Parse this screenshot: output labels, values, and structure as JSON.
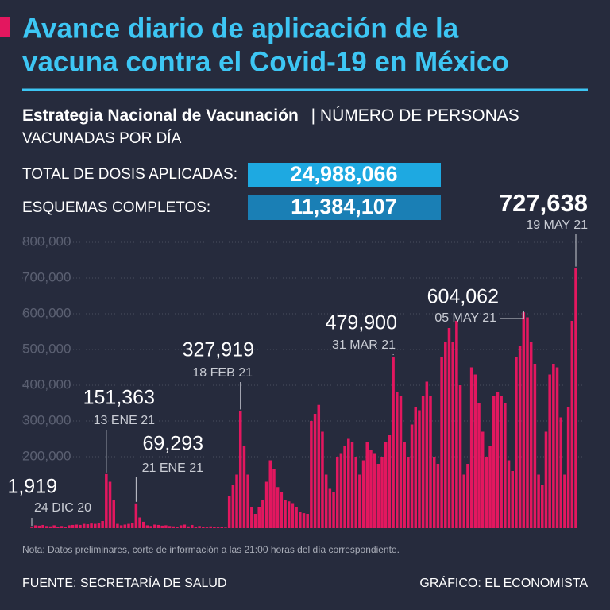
{
  "header": {
    "title_lines": [
      "Avance diario de aplicación de la",
      "vacuna contra el Covid-19 en México"
    ],
    "strategy": "Estrategia Nacional de Vacunación",
    "subtitle_lines": [
      "| NÚMERO DE PERSONAS",
      "VACUNADAS POR DÍA"
    ]
  },
  "stats": [
    {
      "label": "TOTAL DE DOSIS APLICADAS:",
      "value": "24,988,066"
    },
    {
      "label": "ESQUEMAS COMPLETOS:",
      "value": "11,384,107"
    }
  ],
  "chart_data": {
    "type": "bar",
    "color": "#e3175f",
    "grid": true,
    "ylim": [
      0,
      800000
    ],
    "yticks": [
      {
        "value": 200000,
        "label": "200,000"
      },
      {
        "value": 300000,
        "label": "300,000"
      },
      {
        "value": 400000,
        "label": "400,000"
      },
      {
        "value": 500000,
        "label": "500,000"
      },
      {
        "value": 600000,
        "label": "600,000"
      },
      {
        "value": 700000,
        "label": "700,000"
      },
      {
        "value": 800000,
        "label": "800,000"
      }
    ],
    "categories": [
      "24 DIC 20",
      null,
      null,
      null,
      null,
      null,
      null,
      null,
      null,
      null,
      null,
      null,
      null,
      null,
      null,
      null,
      null,
      null,
      null,
      null,
      "13 ENE 21",
      null,
      null,
      null,
      null,
      null,
      null,
      null,
      "21 ENE 21",
      null,
      null,
      null,
      null,
      null,
      null,
      null,
      null,
      null,
      null,
      null,
      null,
      null,
      null,
      null,
      null,
      null,
      null,
      null,
      null,
      null,
      null,
      null,
      null,
      null,
      null,
      null,
      "18 FEB 21",
      null,
      null,
      null,
      null,
      null,
      null,
      null,
      null,
      null,
      null,
      null,
      null,
      null,
      null,
      null,
      null,
      null,
      null,
      null,
      null,
      null,
      null,
      null,
      null,
      null,
      null,
      null,
      null,
      null,
      null,
      null,
      null,
      null,
      null,
      null,
      null,
      null,
      null,
      null,
      null,
      "31 MAR 21",
      null,
      null,
      null,
      null,
      null,
      null,
      null,
      null,
      null,
      null,
      null,
      null,
      null,
      null,
      null,
      null,
      null,
      null,
      null,
      null,
      null,
      null,
      null,
      null,
      null,
      null,
      null,
      null,
      null,
      null,
      null,
      null,
      null,
      null,
      "05 MAY 21",
      null,
      null,
      null,
      null,
      null,
      null,
      null,
      null,
      null,
      null,
      null,
      null,
      null,
      "19 MAY 21"
    ],
    "values": [
      1919,
      8000,
      7000,
      9000,
      6000,
      5000,
      8000,
      4000,
      6000,
      4000,
      8000,
      9000,
      10000,
      9000,
      12000,
      11000,
      13000,
      12000,
      15000,
      20000,
      151363,
      130000,
      78000,
      12000,
      8000,
      10000,
      12000,
      15000,
      69293,
      30000,
      18000,
      8000,
      6000,
      10000,
      9000,
      7000,
      8000,
      6000,
      5000,
      3000,
      8000,
      10000,
      5000,
      9000,
      4000,
      6000,
      3000,
      2000,
      5000,
      4000,
      2000,
      3000,
      1500,
      90000,
      120000,
      150000,
      327919,
      230000,
      150000,
      60000,
      40000,
      60000,
      80000,
      130000,
      190000,
      165000,
      115000,
      100000,
      80000,
      75000,
      70000,
      60000,
      45000,
      42000,
      40000,
      300000,
      320000,
      345000,
      270000,
      150000,
      110000,
      100000,
      200000,
      210000,
      230000,
      250000,
      240000,
      200000,
      150000,
      190000,
      240000,
      220000,
      210000,
      180000,
      200000,
      240000,
      260000,
      479900,
      380000,
      370000,
      240000,
      200000,
      290000,
      340000,
      330000,
      370000,
      410000,
      370000,
      200000,
      180000,
      480000,
      520000,
      560000,
      520000,
      580000,
      400000,
      150000,
      180000,
      450000,
      430000,
      350000,
      270000,
      200000,
      230000,
      370000,
      380000,
      370000,
      350000,
      190000,
      160000,
      480000,
      510000,
      604062,
      590000,
      520000,
      460000,
      150000,
      120000,
      270000,
      430000,
      460000,
      450000,
      310000,
      150000,
      340000,
      580000,
      727638
    ],
    "value_labels": [
      "1,919",
      null,
      null,
      null,
      null,
      null,
      null,
      null,
      null,
      null,
      null,
      null,
      null,
      null,
      null,
      null,
      null,
      null,
      null,
      null,
      "151,363",
      null,
      null,
      null,
      null,
      null,
      null,
      null,
      "69,293",
      null,
      null,
      null,
      null,
      null,
      null,
      null,
      null,
      null,
      null,
      null,
      null,
      null,
      null,
      null,
      null,
      null,
      null,
      null,
      null,
      null,
      null,
      null,
      null,
      null,
      null,
      null,
      "327,919",
      null,
      null,
      null,
      null,
      null,
      null,
      null,
      null,
      null,
      null,
      null,
      null,
      null,
      null,
      null,
      null,
      null,
      null,
      null,
      null,
      null,
      null,
      null,
      null,
      null,
      null,
      null,
      null,
      null,
      null,
      null,
      null,
      null,
      null,
      null,
      null,
      null,
      null,
      null,
      null,
      "479,900",
      null,
      null,
      null,
      null,
      null,
      null,
      null,
      null,
      null,
      null,
      null,
      null,
      null,
      null,
      null,
      null,
      null,
      null,
      null,
      null,
      null,
      null,
      null,
      null,
      null,
      null,
      null,
      null,
      null,
      null,
      null,
      null,
      null,
      null,
      "604,062",
      null,
      null,
      null,
      null,
      null,
      null,
      null,
      null,
      null,
      null,
      null,
      null,
      null,
      "727,638"
    ]
  },
  "note": "Nota: Datos preliminares, corte de información a las 21:00 horas del día correspondiente.",
  "footer": {
    "source": "FUENTE: SECRETARÍA DE SALUD",
    "credit": "GRÁFICO: EL ECONOMISTA"
  }
}
